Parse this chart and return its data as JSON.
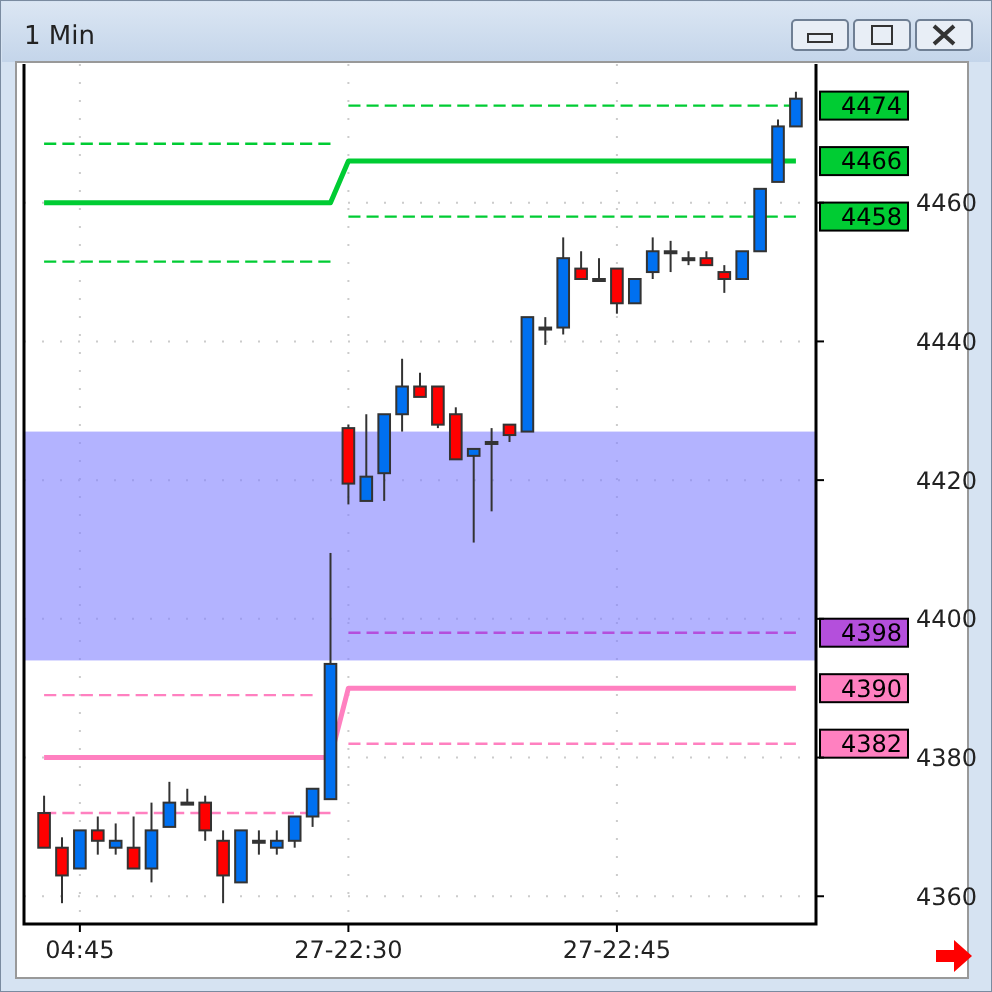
{
  "chart_data": {
    "type": "candlestick",
    "title": "1 Min",
    "categories": [
      null,
      null,
      "04:45",
      null,
      null,
      null,
      null,
      null,
      null,
      null,
      null,
      null,
      null,
      null,
      null,
      null,
      null,
      "27-22:30",
      null,
      null,
      null,
      null,
      null,
      null,
      null,
      null,
      null,
      null,
      null,
      null,
      null,
      null,
      "27-22:45",
      null,
      null,
      null,
      null,
      null,
      null,
      null,
      null,
      null,
      null
    ],
    "ohlc": [
      [
        4372,
        4374.5,
        4367,
        4367
      ],
      [
        4367,
        4368.5,
        4359,
        4363
      ],
      [
        4364,
        4369.5,
        4364,
        4369.5
      ],
      [
        4369.5,
        4371.5,
        4366,
        4368
      ],
      [
        4367,
        4370.5,
        4366,
        4368
      ],
      [
        4367,
        4371.5,
        4364,
        4364
      ],
      [
        4364,
        4373.5,
        4362,
        4369.5
      ],
      [
        4370,
        4376.5,
        4370,
        4373.5
      ],
      [
        4373.5,
        4375.5,
        4373.5,
        4373.5
      ],
      [
        4373.5,
        4374.5,
        4368,
        4369.5
      ],
      [
        4368,
        4369.5,
        4359,
        4363
      ],
      [
        4362,
        4369.5,
        4362,
        4369.5
      ],
      [
        4368,
        4369.5,
        4366,
        4368
      ],
      [
        4367,
        4369.5,
        4366,
        4368
      ],
      [
        4368,
        4371.5,
        4367,
        4371.5
      ],
      [
        4371.5,
        4375.5,
        4370,
        4375.5
      ],
      [
        4374,
        4409.5,
        4374,
        4393.5
      ],
      [
        4427.5,
        4428,
        4416.5,
        4419.5
      ],
      [
        4417,
        4429.5,
        4417,
        4420.5
      ],
      [
        4421,
        4429.5,
        4417,
        4429.5
      ],
      [
        4429.5,
        4437.5,
        4427,
        4433.5
      ],
      [
        4433.5,
        4435.5,
        4432,
        4432
      ],
      [
        4433.5,
        4433.5,
        4427.5,
        4428
      ],
      [
        4429.5,
        4430.5,
        4423,
        4423
      ],
      [
        4423.5,
        4424.5,
        4411,
        4424.5
      ],
      [
        4425.5,
        4427.5,
        4415.5,
        4425.5
      ],
      [
        4428,
        4428,
        4425.5,
        4426.5
      ],
      [
        4427,
        4443.5,
        4427,
        4443.5
      ],
      [
        4442,
        4443.5,
        4439.5,
        4442
      ],
      [
        4442,
        4455,
        4441,
        4452
      ],
      [
        4450.5,
        4453,
        4449,
        4449
      ],
      [
        4449,
        4452,
        4449,
        4449
      ],
      [
        4450.5,
        4450.5,
        4444,
        4445.5
      ],
      [
        4445.5,
        4449,
        4445.5,
        4449
      ],
      [
        4450,
        4455,
        4449,
        4453
      ],
      [
        4453,
        4454.5,
        4450,
        4453
      ],
      [
        4452,
        4453,
        4451,
        4452
      ],
      [
        4452,
        4453,
        4451,
        4451
      ],
      [
        4450,
        4451,
        4447,
        4449
      ],
      [
        4449,
        4453,
        4449,
        4453
      ],
      [
        4453,
        4462,
        4453,
        4462
      ],
      [
        4463,
        4472,
        4463,
        4471
      ],
      [
        4471,
        4476,
        4471,
        4475
      ]
    ],
    "colors": [
      "#ff0000",
      "#ff0000",
      "#0070f0",
      "#ff0000",
      "#0070f0",
      "#ff0000",
      "#0070f0",
      "#0070f0",
      "#0070f0",
      "#ff0000",
      "#ff0000",
      "#0070f0",
      "#0070f0",
      "#0070f0",
      "#0070f0",
      "#0070f0",
      "#0070f0",
      "#ff0000",
      "#0070f0",
      "#0070f0",
      "#0070f0",
      "#ff0000",
      "#ff0000",
      "#ff0000",
      "#0070f0",
      "#0070f0",
      "#ff0000",
      "#0070f0",
      "#0070f0",
      "#0070f0",
      "#ff0000",
      "#0070f0",
      "#ff0000",
      "#0070f0",
      "#0070f0",
      "#0070f0",
      "#0070f0",
      "#ff0000",
      "#ff0000",
      "#0070f0",
      "#0070f0",
      "#0070f0",
      "#0070f0"
    ],
    "series": [
      {
        "type": "line",
        "color": "#00cc33",
        "line_style": "solid",
        "values": [
          4460,
          4460,
          4460,
          4460,
          4460,
          4460,
          4460,
          4460,
          4460,
          4460,
          4460,
          4460,
          4460,
          4460,
          4460,
          4460,
          4460,
          4466,
          4466,
          4466,
          4466,
          4466,
          4466,
          4466,
          4466,
          4466,
          4466,
          4466,
          4466,
          4466,
          4466,
          4466,
          4466,
          4466,
          4466,
          4466,
          4466,
          4466,
          4466,
          4466,
          4466,
          4466,
          4466
        ],
        "value_labels": [
          null,
          null,
          null,
          null,
          null,
          null,
          null,
          null,
          null,
          null,
          null,
          null,
          null,
          null,
          null,
          null,
          null,
          null,
          null,
          null,
          null,
          null,
          null,
          null,
          null,
          null,
          null,
          null,
          null,
          null,
          null,
          null,
          null,
          null,
          null,
          null,
          null,
          null,
          null,
          null,
          null,
          null,
          "4466"
        ]
      },
      {
        "type": "line",
        "color": "#00cc33",
        "line_style": "dashed",
        "values": [
          4468.5,
          4468.5,
          4468.5,
          4468.5,
          4468.5,
          4468.5,
          4468.5,
          4468.5,
          4468.5,
          4468.5,
          4468.5,
          4468.5,
          4468.5,
          4468.5,
          4468.5,
          4468.5,
          4468.5,
          null,
          null,
          null,
          null,
          null,
          null,
          null,
          null,
          null,
          null,
          null,
          null,
          null,
          null,
          null,
          null,
          null,
          null,
          null,
          null,
          null,
          null,
          null,
          null,
          null,
          null
        ]
      },
      {
        "type": "line",
        "color": "#00cc33",
        "line_style": "dashed",
        "values": [
          4451.5,
          4451.5,
          4451.5,
          4451.5,
          4451.5,
          4451.5,
          4451.5,
          4451.5,
          4451.5,
          4451.5,
          4451.5,
          4451.5,
          4451.5,
          4451.5,
          4451.5,
          4451.5,
          4451.5,
          null,
          null,
          null,
          null,
          null,
          null,
          null,
          null,
          null,
          null,
          null,
          null,
          null,
          null,
          null,
          null,
          null,
          null,
          null,
          null,
          null,
          null,
          null,
          null,
          null,
          null
        ]
      },
      {
        "type": "line",
        "color": "#00cc33",
        "line_style": "dashed",
        "values": [
          null,
          null,
          null,
          null,
          null,
          null,
          null,
          null,
          null,
          null,
          null,
          null,
          null,
          null,
          null,
          null,
          null,
          4474,
          4474,
          4474,
          4474,
          4474,
          4474,
          4474,
          4474,
          4474,
          4474,
          4474,
          4474,
          4474,
          4474,
          4474,
          4474,
          4474,
          4474,
          4474,
          4474,
          4474,
          4474,
          4474,
          4474,
          4474,
          4474
        ],
        "value_labels": [
          null,
          null,
          null,
          null,
          null,
          null,
          null,
          null,
          null,
          null,
          null,
          null,
          null,
          null,
          null,
          null,
          null,
          null,
          null,
          null,
          null,
          null,
          null,
          null,
          null,
          null,
          null,
          null,
          null,
          null,
          null,
          null,
          null,
          null,
          null,
          null,
          null,
          null,
          null,
          null,
          null,
          null,
          "4474"
        ]
      },
      {
        "type": "line",
        "color": "#00cc33",
        "line_style": "dashed",
        "values": [
          null,
          null,
          null,
          null,
          null,
          null,
          null,
          null,
          null,
          null,
          null,
          null,
          null,
          null,
          null,
          null,
          null,
          4458,
          4458,
          4458,
          4458,
          4458,
          4458,
          4458,
          4458,
          4458,
          4458,
          4458,
          4458,
          4458,
          4458,
          4458,
          4458,
          4458,
          4458,
          4458,
          4458,
          4458,
          4458,
          4458,
          4458,
          4458,
          4458
        ],
        "value_labels": [
          null,
          null,
          null,
          null,
          null,
          null,
          null,
          null,
          null,
          null,
          null,
          null,
          null,
          null,
          null,
          null,
          null,
          null,
          null,
          null,
          null,
          null,
          null,
          null,
          null,
          null,
          null,
          null,
          null,
          null,
          null,
          null,
          null,
          null,
          null,
          null,
          null,
          null,
          null,
          null,
          null,
          null,
          "4458"
        ]
      },
      {
        "type": "line",
        "color": "#ff80c0",
        "line_style": "solid",
        "values": [
          4380,
          4380,
          4380,
          4380,
          4380,
          4380,
          4380,
          4380,
          4380,
          4380,
          4380,
          4380,
          4380,
          4380,
          4380,
          4380,
          4380,
          4390,
          4390,
          4390,
          4390,
          4390,
          4390,
          4390,
          4390,
          4390,
          4390,
          4390,
          4390,
          4390,
          4390,
          4390,
          4390,
          4390,
          4390,
          4390,
          4390,
          4390,
          4390,
          4390,
          4390,
          4390,
          4390
        ],
        "value_labels": [
          null,
          null,
          null,
          null,
          null,
          null,
          null,
          null,
          null,
          null,
          null,
          null,
          null,
          null,
          null,
          null,
          null,
          null,
          null,
          null,
          null,
          null,
          null,
          null,
          null,
          null,
          null,
          null,
          null,
          null,
          null,
          null,
          null,
          null,
          null,
          null,
          null,
          null,
          null,
          null,
          null,
          null,
          "4390"
        ]
      },
      {
        "type": "line",
        "color": "#ff80c0",
        "line_style": "dashed",
        "values": [
          4389,
          4389,
          4389,
          4389,
          4389,
          4389,
          4389,
          4389,
          4389,
          4389,
          4389,
          4389,
          4389,
          4389,
          4389,
          4389,
          null,
          null,
          null,
          null,
          null,
          null,
          null,
          null,
          null,
          null,
          null,
          null,
          null,
          null,
          null,
          null,
          null,
          null,
          null,
          null,
          null,
          null,
          null,
          null,
          null,
          null,
          null
        ]
      },
      {
        "type": "line",
        "color": "#ff80c0",
        "line_style": "dashed",
        "values": [
          4372,
          4372,
          4372,
          4372,
          4372,
          4372,
          4372,
          4372,
          4372,
          4372,
          4372,
          4372,
          4372,
          4372,
          4372,
          4372,
          4372,
          null,
          null,
          null,
          null,
          null,
          null,
          null,
          null,
          null,
          null,
          null,
          null,
          null,
          null,
          null,
          null,
          null,
          null,
          null,
          null,
          null,
          null,
          null,
          null,
          null,
          null
        ]
      },
      {
        "type": "line",
        "color": "#b44fdc",
        "line_style": "dashed",
        "values": [
          null,
          null,
          null,
          null,
          null,
          null,
          null,
          null,
          null,
          null,
          null,
          null,
          null,
          null,
          null,
          null,
          null,
          4398,
          4398,
          4398,
          4398,
          4398,
          4398,
          4398,
          4398,
          4398,
          4398,
          4398,
          4398,
          4398,
          4398,
          4398,
          4398,
          4398,
          4398,
          4398,
          4398,
          4398,
          4398,
          4398,
          4398,
          4398,
          4398
        ],
        "value_labels": [
          null,
          null,
          null,
          null,
          null,
          null,
          null,
          null,
          null,
          null,
          null,
          null,
          null,
          null,
          null,
          null,
          null,
          null,
          null,
          null,
          null,
          null,
          null,
          null,
          null,
          null,
          null,
          null,
          null,
          null,
          null,
          null,
          null,
          null,
          null,
          null,
          null,
          null,
          null,
          null,
          null,
          null,
          "4398"
        ]
      },
      {
        "type": "line",
        "color": "#ff80c0",
        "line_style": "dashed",
        "values": [
          null,
          null,
          null,
          null,
          null,
          null,
          null,
          null,
          null,
          null,
          null,
          null,
          null,
          null,
          null,
          null,
          null,
          4382,
          4382,
          4382,
          4382,
          4382,
          4382,
          4382,
          4382,
          4382,
          4382,
          4382,
          4382,
          4382,
          4382,
          4382,
          4382,
          4382,
          4382,
          4382,
          4382,
          4382,
          4382,
          4382,
          4382,
          4382,
          4382
        ],
        "value_labels": [
          null,
          null,
          null,
          null,
          null,
          null,
          null,
          null,
          null,
          null,
          null,
          null,
          null,
          null,
          null,
          null,
          null,
          null,
          null,
          null,
          null,
          null,
          null,
          null,
          null,
          null,
          null,
          null,
          null,
          null,
          null,
          null,
          null,
          null,
          null,
          null,
          null,
          null,
          null,
          null,
          null,
          null,
          "4382"
        ]
      }
    ],
    "bands": [
      {
        "axis": "y",
        "from": 4394,
        "to": 4427,
        "color": "#8080ff"
      }
    ],
    "ylim": [
      4356,
      4480
    ],
    "yticks": [
      4360,
      4380,
      4400,
      4420,
      4440,
      4460
    ],
    "grid": true
  }
}
